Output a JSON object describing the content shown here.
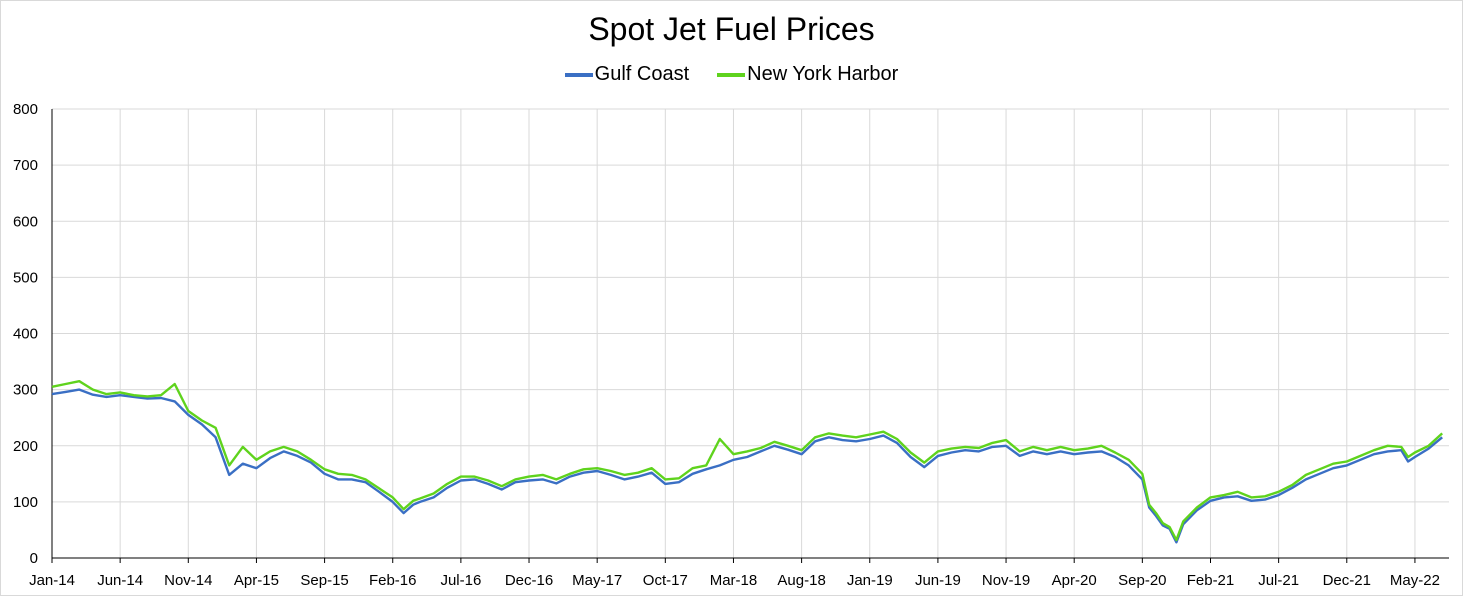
{
  "chart_data": {
    "type": "line",
    "title": "Spot Jet Fuel Prices",
    "xlabel": "",
    "ylabel": "",
    "ylim": [
      0,
      800
    ],
    "yticks": [
      0,
      100,
      200,
      300,
      400,
      500,
      600,
      700,
      800
    ],
    "x_tick_labels": [
      "Jan-14",
      "Jun-14",
      "Nov-14",
      "Apr-15",
      "Sep-15",
      "Feb-16",
      "Jul-16",
      "Dec-16",
      "May-17",
      "Oct-17",
      "Mar-18",
      "Aug-18",
      "Jan-19",
      "Jun-19",
      "Nov-19",
      "Apr-20",
      "Sep-20",
      "Feb-21",
      "Jul-21",
      "Dec-21",
      "May-22"
    ],
    "x_unit": "months since Jan-14",
    "xlim": [
      0,
      102.5
    ],
    "legend_position": "top-center",
    "grid": true,
    "series": [
      {
        "name": "Gulf Coast",
        "color": "#3a6fc4",
        "points": [
          [
            0,
            292
          ],
          [
            1,
            296
          ],
          [
            2,
            300
          ],
          [
            3,
            291
          ],
          [
            4,
            287
          ],
          [
            5,
            290
          ],
          [
            6,
            287
          ],
          [
            7,
            284
          ],
          [
            8,
            285
          ],
          [
            9,
            279
          ],
          [
            10,
            255
          ],
          [
            11,
            238
          ],
          [
            12,
            215
          ],
          [
            13,
            148
          ],
          [
            14,
            168
          ],
          [
            15,
            160
          ],
          [
            16,
            178
          ],
          [
            17,
            190
          ],
          [
            18,
            182
          ],
          [
            19,
            170
          ],
          [
            20,
            150
          ],
          [
            21,
            140
          ],
          [
            22,
            140
          ],
          [
            23,
            135
          ],
          [
            24,
            118
          ],
          [
            25,
            100
          ],
          [
            25.8,
            80
          ],
          [
            26.5,
            95
          ],
          [
            27,
            100
          ],
          [
            28,
            108
          ],
          [
            29,
            125
          ],
          [
            30,
            138
          ],
          [
            31,
            140
          ],
          [
            32,
            132
          ],
          [
            33,
            122
          ],
          [
            34,
            135
          ],
          [
            35,
            138
          ],
          [
            36,
            140
          ],
          [
            37,
            133
          ],
          [
            38,
            145
          ],
          [
            39,
            152
          ],
          [
            40,
            155
          ],
          [
            41,
            148
          ],
          [
            42,
            140
          ],
          [
            43,
            145
          ],
          [
            44,
            152
          ],
          [
            45,
            132
          ],
          [
            46,
            135
          ],
          [
            47,
            150
          ],
          [
            48,
            158
          ],
          [
            49,
            165
          ],
          [
            50,
            175
          ],
          [
            51,
            180
          ],
          [
            52,
            190
          ],
          [
            53,
            200
          ],
          [
            54,
            193
          ],
          [
            55,
            185
          ],
          [
            56,
            208
          ],
          [
            57,
            215
          ],
          [
            58,
            210
          ],
          [
            59,
            208
          ],
          [
            60,
            212
          ],
          [
            61,
            218
          ],
          [
            62,
            205
          ],
          [
            63,
            180
          ],
          [
            64,
            162
          ],
          [
            65,
            182
          ],
          [
            66,
            188
          ],
          [
            67,
            192
          ],
          [
            68,
            190
          ],
          [
            69,
            198
          ],
          [
            70,
            200
          ],
          [
            71,
            182
          ],
          [
            72,
            190
          ],
          [
            73,
            185
          ],
          [
            74,
            190
          ],
          [
            75,
            185
          ],
          [
            76,
            188
          ],
          [
            77,
            190
          ],
          [
            78,
            180
          ],
          [
            79,
            165
          ],
          [
            80,
            140
          ],
          [
            80.5,
            90
          ],
          [
            81,
            75
          ],
          [
            81.5,
            58
          ],
          [
            82,
            52
          ],
          [
            82.5,
            28
          ],
          [
            83,
            60
          ],
          [
            84,
            85
          ],
          [
            85,
            102
          ],
          [
            86,
            108
          ],
          [
            87,
            110
          ],
          [
            88,
            102
          ],
          [
            89,
            104
          ],
          [
            90,
            112
          ],
          [
            91,
            125
          ],
          [
            92,
            140
          ],
          [
            93,
            150
          ],
          [
            94,
            160
          ],
          [
            95,
            165
          ],
          [
            96,
            175
          ],
          [
            97,
            185
          ],
          [
            98,
            190
          ],
          [
            99,
            192
          ],
          [
            99.5,
            172
          ],
          [
            100,
            180
          ],
          [
            101,
            195
          ],
          [
            102,
            215
          ]
        ]
      },
      {
        "name": "New York Harbor",
        "color": "#5fd31d",
        "points": [
          [
            0,
            305
          ],
          [
            1,
            310
          ],
          [
            2,
            315
          ],
          [
            3,
            300
          ],
          [
            4,
            292
          ],
          [
            5,
            295
          ],
          [
            6,
            290
          ],
          [
            7,
            288
          ],
          [
            8,
            290
          ],
          [
            9,
            310
          ],
          [
            10,
            262
          ],
          [
            11,
            245
          ],
          [
            12,
            232
          ],
          [
            13,
            165
          ],
          [
            14,
            198
          ],
          [
            15,
            175
          ],
          [
            16,
            190
          ],
          [
            17,
            198
          ],
          [
            18,
            190
          ],
          [
            19,
            175
          ],
          [
            20,
            158
          ],
          [
            21,
            150
          ],
          [
            22,
            148
          ],
          [
            23,
            140
          ],
          [
            24,
            124
          ],
          [
            25,
            108
          ],
          [
            25.8,
            87
          ],
          [
            26.5,
            102
          ],
          [
            27,
            106
          ],
          [
            28,
            115
          ],
          [
            29,
            132
          ],
          [
            30,
            145
          ],
          [
            31,
            145
          ],
          [
            32,
            138
          ],
          [
            33,
            128
          ],
          [
            34,
            140
          ],
          [
            35,
            145
          ],
          [
            36,
            148
          ],
          [
            37,
            140
          ],
          [
            38,
            150
          ],
          [
            39,
            158
          ],
          [
            40,
            160
          ],
          [
            41,
            155
          ],
          [
            42,
            148
          ],
          [
            43,
            152
          ],
          [
            44,
            160
          ],
          [
            45,
            140
          ],
          [
            46,
            142
          ],
          [
            47,
            160
          ],
          [
            48,
            165
          ],
          [
            49,
            212
          ],
          [
            50,
            185
          ],
          [
            51,
            190
          ],
          [
            52,
            196
          ],
          [
            53,
            207
          ],
          [
            54,
            200
          ],
          [
            55,
            192
          ],
          [
            56,
            215
          ],
          [
            57,
            222
          ],
          [
            58,
            218
          ],
          [
            59,
            215
          ],
          [
            60,
            220
          ],
          [
            61,
            225
          ],
          [
            62,
            212
          ],
          [
            63,
            188
          ],
          [
            64,
            170
          ],
          [
            65,
            190
          ],
          [
            66,
            195
          ],
          [
            67,
            198
          ],
          [
            68,
            196
          ],
          [
            69,
            205
          ],
          [
            70,
            210
          ],
          [
            71,
            190
          ],
          [
            72,
            198
          ],
          [
            73,
            192
          ],
          [
            74,
            198
          ],
          [
            75,
            192
          ],
          [
            76,
            195
          ],
          [
            77,
            200
          ],
          [
            78,
            188
          ],
          [
            79,
            175
          ],
          [
            80,
            150
          ],
          [
            80.5,
            95
          ],
          [
            81,
            80
          ],
          [
            81.5,
            62
          ],
          [
            82,
            55
          ],
          [
            82.5,
            32
          ],
          [
            83,
            65
          ],
          [
            84,
            90
          ],
          [
            85,
            108
          ],
          [
            86,
            112
          ],
          [
            87,
            118
          ],
          [
            88,
            108
          ],
          [
            89,
            110
          ],
          [
            90,
            118
          ],
          [
            91,
            130
          ],
          [
            92,
            148
          ],
          [
            93,
            158
          ],
          [
            94,
            168
          ],
          [
            95,
            172
          ],
          [
            96,
            182
          ],
          [
            97,
            192
          ],
          [
            98,
            200
          ],
          [
            99,
            198
          ],
          [
            99.5,
            180
          ],
          [
            100,
            188
          ],
          [
            101,
            200
          ],
          [
            102,
            222
          ]
        ]
      }
    ]
  }
}
